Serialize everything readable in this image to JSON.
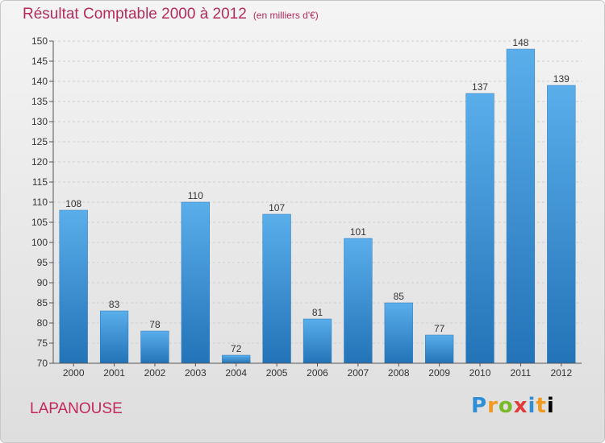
{
  "chart_data": {
    "type": "bar",
    "title": "Résultat Comptable 2000 à 2012",
    "subtitle": "(en milliers d'€)",
    "categories": [
      "2000",
      "2001",
      "2002",
      "2003",
      "2004",
      "2005",
      "2006",
      "2007",
      "2008",
      "2009",
      "2010",
      "2011",
      "2012"
    ],
    "values": [
      108,
      83,
      78,
      110,
      72,
      107,
      81,
      101,
      85,
      77,
      137,
      148,
      139
    ],
    "xlabel": "",
    "ylabel": "",
    "ylim": [
      70,
      150
    ],
    "yticks": [
      70,
      75,
      80,
      85,
      90,
      95,
      100,
      105,
      110,
      115,
      120,
      125,
      130,
      135,
      140,
      145,
      150
    ],
    "grid": true,
    "bar_color": "#3b94dc"
  },
  "footer": {
    "commune": "LAPANOUSE",
    "brand_letters": [
      "P",
      "r",
      "o",
      "x",
      "i",
      "t",
      "i"
    ]
  }
}
